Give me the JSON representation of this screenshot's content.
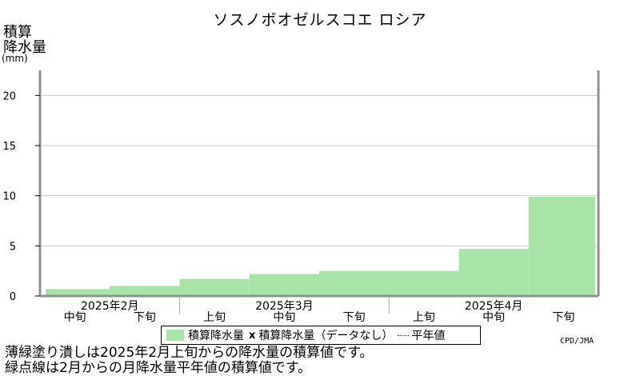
{
  "chart_data": {
    "type": "bar",
    "title": "ソスノボオゼルスコエ ロシア",
    "ylabel_lines": [
      "積算",
      "降水量"
    ],
    "yunit": "(mm)",
    "ylim": [
      0,
      22.5
    ],
    "yticks": [
      0,
      5,
      10,
      15,
      20
    ],
    "grid": true,
    "categories": [
      "2025年2月中旬",
      "2025年2月下旬",
      "2025年3月上旬",
      "2025年3月中旬",
      "2025年3月下旬",
      "2025年4月上旬",
      "2025年4月中旬",
      "2025年4月下旬"
    ],
    "x_period_labels": [
      "中旬",
      "下旬",
      "上旬",
      "中旬",
      "下旬",
      "上旬",
      "中旬",
      "下旬"
    ],
    "x_month_labels": [
      {
        "label": "2025年2月",
        "start": 0,
        "span": 2
      },
      {
        "label": "2025年3月",
        "start": 2,
        "span": 3
      },
      {
        "label": "2025年4月",
        "start": 5,
        "span": 3
      }
    ],
    "series": [
      {
        "name": "積算降水量",
        "values": [
          0.7,
          1.0,
          1.7,
          2.2,
          2.5,
          2.5,
          4.7,
          9.9
        ]
      }
    ],
    "legend": {
      "entries": [
        "積算降水量",
        "積算降水量（データなし）",
        "平年値"
      ],
      "placement": "bottom"
    },
    "colors": {
      "bar": "#a8e4a8",
      "grid": "#c8c8c8",
      "axis": "#909090"
    }
  },
  "credit": "CPD/JMA",
  "notes": [
    "薄緑塗り潰しは2025年2月上旬からの降水量の積算値です。",
    "緑点線は2月からの月降水量平年値の積算値です。"
  ]
}
